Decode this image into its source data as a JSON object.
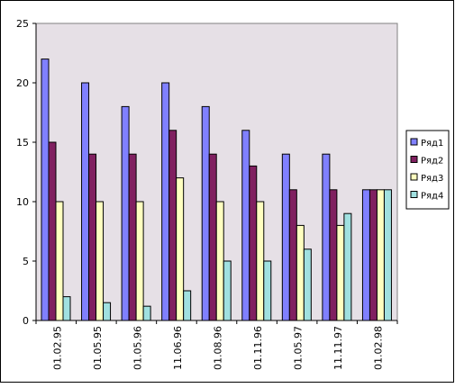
{
  "chart_data": {
    "type": "bar",
    "categories": [
      "01.02.95",
      "01.05.95",
      "01.05.96",
      "11.06.96",
      "01.08.96",
      "01.11.96",
      "01.05.97",
      "11.11.97",
      "01.02.98"
    ],
    "series": [
      {
        "name": "Ряд1",
        "color": "#8080ff",
        "values": [
          22,
          20,
          18,
          20,
          18,
          16,
          14,
          14,
          11
        ]
      },
      {
        "name": "Ряд2",
        "color": "#802060",
        "values": [
          15,
          14,
          14,
          16,
          14,
          13,
          11,
          11,
          11
        ]
      },
      {
        "name": "Ряд3",
        "color": "#ffffc0",
        "values": [
          10,
          10,
          10,
          12,
          10,
          10,
          8,
          8,
          11
        ]
      },
      {
        "name": "Ряд4",
        "color": "#a0e0e0",
        "values": [
          2,
          1.5,
          1.2,
          2.5,
          5,
          5,
          6,
          9,
          11
        ]
      }
    ],
    "ylim": [
      0,
      25
    ],
    "yticks": [
      "0",
      "5",
      "10",
      "15",
      "20",
      "25"
    ],
    "grid": true,
    "legend_position": "right",
    "plot_background": "#e6e0e6"
  }
}
